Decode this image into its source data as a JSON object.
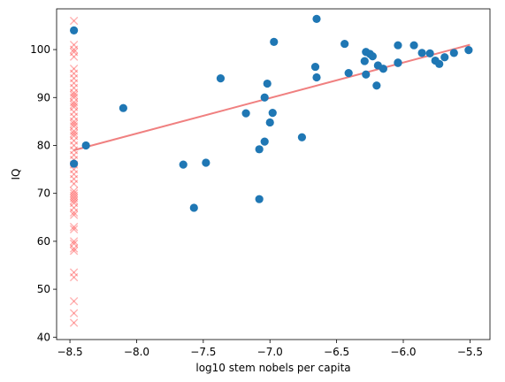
{
  "chart_data": {
    "type": "scatter",
    "xlabel": "log10 stem nobels per capita",
    "ylabel": "IQ",
    "xlim": [
      -8.6,
      -5.35
    ],
    "ylim": [
      39.5,
      108.5
    ],
    "xticks": [
      -8.5,
      -8.0,
      -7.5,
      -7.0,
      -6.5,
      -6.0,
      -5.5
    ],
    "xtick_labels": [
      "−8.5",
      "−8.0",
      "−7.5",
      "−7.0",
      "−6.5",
      "−6.0",
      "−5.5"
    ],
    "yticks": [
      40,
      50,
      60,
      70,
      80,
      90,
      100
    ],
    "ytick_labels": [
      "40",
      "50",
      "60",
      "70",
      "80",
      "90",
      "100"
    ],
    "grid": false,
    "colors": {
      "points": "#1f77b4",
      "cross": "#ff0000",
      "fit": "#f08080"
    },
    "series": [
      {
        "marker": "circle",
        "points": [
          [
            -8.47,
            104.0
          ],
          [
            -8.47,
            76.2
          ],
          [
            -8.38,
            80.0
          ],
          [
            -8.1,
            87.8
          ],
          [
            -7.65,
            76.0
          ],
          [
            -7.57,
            67.0
          ],
          [
            -7.48,
            76.4
          ],
          [
            -7.37,
            94.0
          ],
          [
            -7.18,
            86.7
          ],
          [
            -7.08,
            79.2
          ],
          [
            -7.08,
            68.8
          ],
          [
            -7.04,
            80.8
          ],
          [
            -7.04,
            90.0
          ],
          [
            -7.02,
            92.9
          ],
          [
            -7.0,
            84.8
          ],
          [
            -6.98,
            86.8
          ],
          [
            -6.97,
            101.6
          ],
          [
            -6.76,
            81.7
          ],
          [
            -6.66,
            96.4
          ],
          [
            -6.65,
            94.2
          ],
          [
            -6.65,
            106.4
          ],
          [
            -6.44,
            101.2
          ],
          [
            -6.41,
            95.1
          ],
          [
            -6.29,
            97.6
          ],
          [
            -6.28,
            99.5
          ],
          [
            -6.28,
            94.8
          ],
          [
            -6.25,
            99.1
          ],
          [
            -6.23,
            98.6
          ],
          [
            -6.2,
            92.5
          ],
          [
            -6.19,
            96.7
          ],
          [
            -6.15,
            96.0
          ],
          [
            -6.04,
            100.9
          ],
          [
            -6.04,
            97.3
          ],
          [
            -6.04,
            97.2
          ],
          [
            -5.92,
            100.9
          ],
          [
            -5.86,
            99.3
          ],
          [
            -5.8,
            99.2
          ],
          [
            -5.76,
            97.7
          ],
          [
            -5.73,
            97.0
          ],
          [
            -5.69,
            98.4
          ],
          [
            -5.62,
            99.3
          ],
          [
            -5.51,
            99.9
          ]
        ]
      },
      {
        "marker": "x",
        "x": -8.47,
        "y": [
          106.0,
          101.0,
          100.0,
          99.5,
          98.5,
          96.0,
          95.0,
          94.0,
          93.0,
          92.0,
          91.0,
          90.5,
          90.0,
          89.0,
          88.5,
          88.0,
          87.0,
          86.0,
          85.0,
          84.5,
          84.0,
          83.0,
          82.5,
          82.0,
          81.0,
          80.0,
          79.0,
          78.0,
          77.0,
          76.0,
          75.0,
          74.0,
          73.0,
          72.0,
          70.5,
          70.0,
          69.5,
          69.0,
          68.5,
          68.0,
          67.0,
          66.0,
          65.5,
          63.0,
          62.5,
          60.0,
          59.5,
          58.5,
          58.0,
          53.5,
          52.5,
          47.5,
          45.0,
          43.0
        ]
      }
    ],
    "fit_line": {
      "x": [
        -8.47,
        -5.5
      ],
      "y": [
        79.0,
        101.0
      ]
    }
  }
}
